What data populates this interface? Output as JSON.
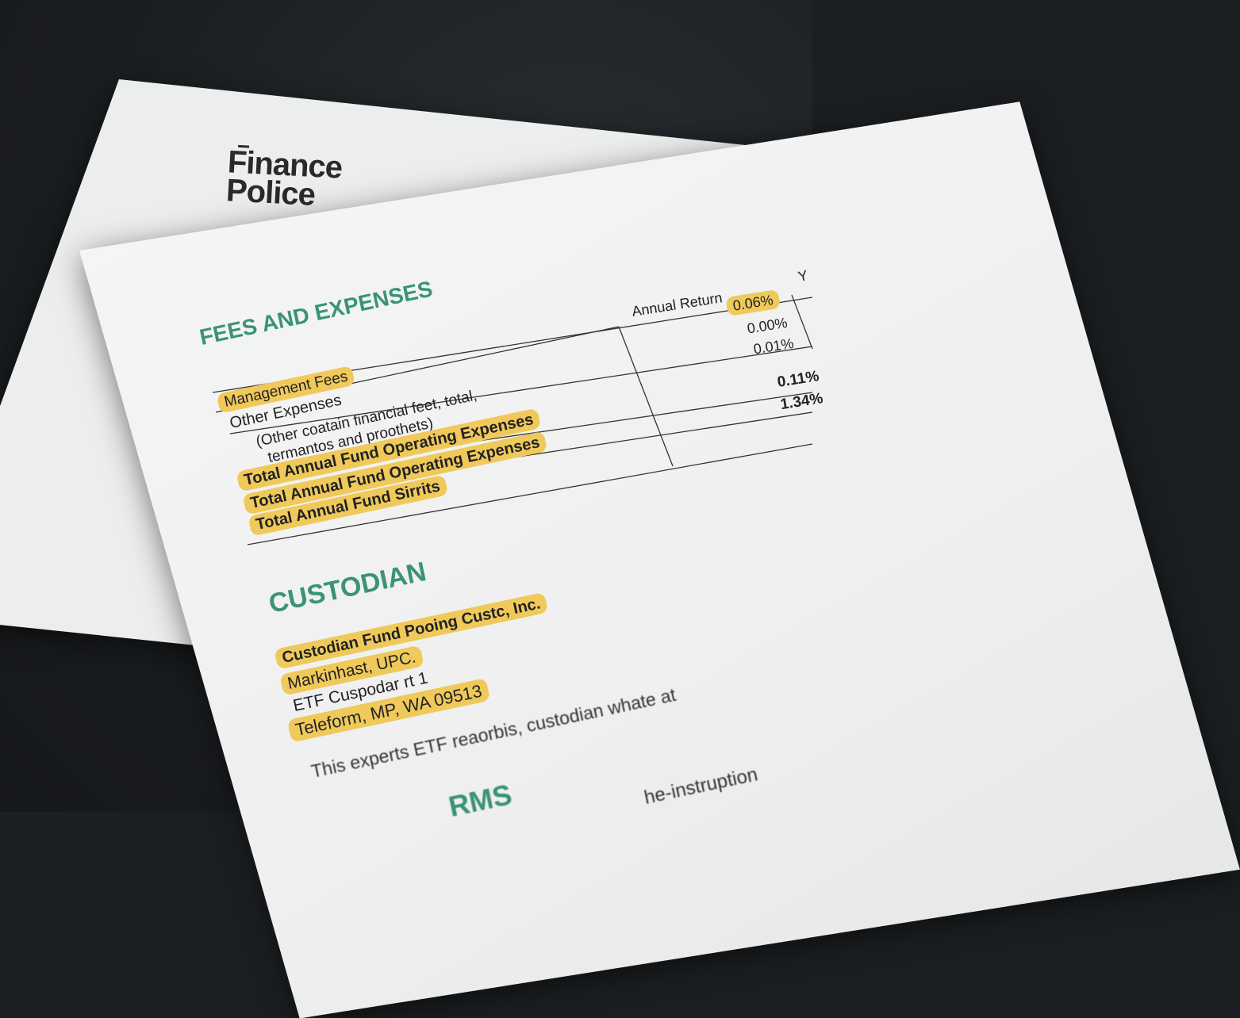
{
  "logo": {
    "line1": "Finance",
    "line2": "Police"
  },
  "fees": {
    "heading": "FEES AND EXPENSES",
    "column_header": "Annual Return",
    "next_column_header_partial": "Y",
    "rows": [
      {
        "label": "Management Fees",
        "highlighted": true
      },
      {
        "label": "Other Expenses",
        "highlighted": false
      },
      {
        "label": "(Other coatain financial feet, total,",
        "highlighted": false
      },
      {
        "label": "termantos and proothets)",
        "highlighted": false
      },
      {
        "label": "Total Annual Fund Operating Expenses",
        "highlighted": true
      },
      {
        "label": "Total Annual Fund Operating Expenses",
        "highlighted": true
      },
      {
        "label": "Total Annual Fund Sirrits",
        "highlighted": true
      }
    ],
    "values": [
      "0.06%",
      "0.00%",
      "0.01%",
      "0.11%",
      "1.34%"
    ]
  },
  "custodian": {
    "heading": "CUSTODIAN",
    "lines": [
      "Custodian Fund Pooing Custc, Inc.",
      "Markinhast, UPC.",
      "ETF Cuspodar rt 1",
      "Teleform, MP, WA 09513"
    ],
    "paragraph": "This experts ETF reaorbis, custodian whate at",
    "next_heading_partial": "RMS",
    "next_paragraph_partial": "he-instruption"
  },
  "colors": {
    "heading": "#3a9474",
    "highlight": "#efc95a",
    "background": "#1c1f22"
  }
}
